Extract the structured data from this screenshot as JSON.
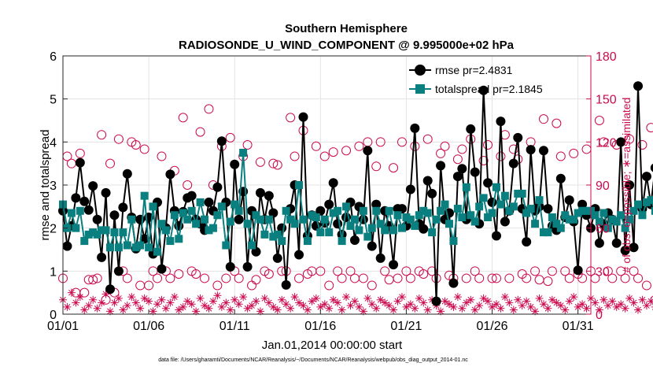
{
  "colors": {
    "rmse": "#000000",
    "spread": "#0a7f7f",
    "obs": "#cc0a4f",
    "axis": "#262626"
  },
  "chart_data": {
    "type": "line",
    "title": "Southern Hemisphere",
    "subtitle": "RADIOSONDE_U_WIND_COMPONENT @ 9.995000e+02 hPa",
    "xlabel": "Jan.01,2014 00:00:00 start",
    "ylabel": "rmse and totalspread",
    "ylabel_right": "# of obs: o=possible; ∗=assimilated",
    "footer": "data file: /Users/gharamti/Documents/NCAR/Reanalysis/~/Documents/NCAR/Reanalysis/webpub/obs_diag_output_2014-01.nc",
    "x_ticks": [
      "01/01",
      "01/06",
      "01/11",
      "01/16",
      "01/21",
      "01/26",
      "01/31"
    ],
    "x_tick_days": [
      1,
      6,
      11,
      16,
      21,
      26,
      31
    ],
    "xlim": [
      1,
      31.75
    ],
    "ylim": [
      0,
      6
    ],
    "y_ticks": [
      "0",
      "1",
      "2",
      "3",
      "4",
      "5",
      "6"
    ],
    "ylim_right": [
      0,
      180
    ],
    "y_ticks_right": [
      "0",
      "30",
      "60",
      "90",
      "120",
      "150",
      "180"
    ],
    "legend": [
      "rmse pr=2.4831",
      "totalspread pr=2.1845"
    ],
    "x_start": 1,
    "x_step": 0.25,
    "series": [
      {
        "name": "rmse",
        "values": [
          2.4,
          1.58,
          2.05,
          2.7,
          3.52,
          2.62,
          2.42,
          2.98,
          2.2,
          1.32,
          2.82,
          0.58,
          2.3,
          1.0,
          2.48,
          3.26,
          2.25,
          1.52,
          2.2,
          1.75,
          2.25,
          1.4,
          2.6,
          1.05,
          2.0,
          3.25,
          2.4,
          2.05,
          2.38,
          2.7,
          2.75,
          2.2,
          2.1,
          1.95,
          2.6,
          2.4,
          2.95,
          4.02,
          2.6,
          1.1,
          3.48,
          2.2,
          2.85,
          1.1,
          2.4,
          1.45,
          2.82,
          2.2,
          2.75,
          2.35,
          1.3,
          2.0,
          0.68,
          2.45,
          3.0,
          1.38,
          4.58,
          1.82,
          2.3,
          2.05,
          2.4,
          2.12,
          2.55,
          3.05,
          2.1,
          1.85,
          2.25,
          2.6,
          1.72,
          2.5,
          2.2,
          3.8,
          1.58,
          2.55,
          1.3,
          2.4,
          2.05,
          1.15,
          2.45,
          2.45,
          2.05,
          2.9,
          4.32,
          2.1,
          1.98,
          3.1,
          2.8,
          0.3,
          3.45,
          2.2,
          2.35,
          0.72,
          3.2,
          3.38,
          2.2,
          4.3,
          3.3,
          2.1,
          5.2,
          3.05,
          2.6,
          1.82,
          4.48,
          2.15,
          2.4,
          3.5,
          4.1,
          2.45,
          1.68,
          3.82,
          2.4,
          2.5,
          3.8,
          2.45,
          2.05,
          1.95,
          3.15,
          2.25,
          2.65,
          2.15,
          1.02,
          2.55,
          2.3,
          2.0,
          2.45,
          1.65,
          2.1,
          2.35,
          2.2,
          1.65,
          4.0,
          1.48,
          3.0,
          1.55,
          5.3,
          2.45,
          3.2,
          2.55,
          3.4,
          3.35
        ]
      },
      {
        "name": "totalspread",
        "values": [
          2.55,
          2.0,
          2.35,
          2.0,
          2.4,
          1.7,
          1.85,
          1.9,
          1.85,
          1.95,
          1.95,
          1.55,
          1.9,
          1.55,
          1.9,
          1.6,
          2.2,
          1.55,
          1.6,
          2.75,
          1.55,
          2.5,
          1.45,
          2.1,
          1.95,
          1.7,
          2.3,
          1.75,
          2.35,
          2.2,
          2.4,
          2.1,
          2.6,
          2.2,
          1.95,
          2.0,
          2.3,
          2.5,
          1.6,
          2.15,
          2.55,
          2.4,
          3.75,
          2.1,
          1.6,
          2.3,
          2.2,
          1.85,
          2.2,
          1.8,
          1.85,
          1.7,
          2.4,
          2.2,
          2.1,
          3.0,
          2.2,
          1.7,
          2.3,
          2.25,
          1.9,
          2.2,
          1.9,
          2.35,
          2.4,
          1.7,
          2.5,
          2.05,
          2.2,
          1.95,
          2.4,
          1.8,
          2.0,
          2.4,
          2.1,
          1.95,
          2.4,
          1.95,
          2.3,
          2.0,
          2.25,
          2.2,
          2.05,
          2.3,
          2.4,
          2.35,
          1.9,
          2.2,
          2.4,
          2.55,
          2.1,
          1.7,
          2.45,
          2.25,
          2.95,
          2.3,
          2.15,
          2.5,
          2.7,
          2.25,
          2.35,
          2.95,
          2.55,
          2.75,
          2.4,
          2.5,
          2.8,
          2.8,
          2.35,
          2.45,
          2.1,
          2.65,
          1.9,
          1.9,
          2.25,
          2.1,
          2.0,
          2.3,
          2.2,
          2.2,
          2.35,
          2.4,
          2.4,
          2.4,
          2.3,
          2.15,
          2.35,
          2.0,
          2.2,
          2.15,
          2.3,
          2.0,
          2.2,
          2.4,
          2.55,
          2.3,
          2.6,
          2.65,
          2.4,
          2.45
        ]
      },
      {
        "name": "possible_obs",
        "axis": "right",
        "values": [
          25,
          110,
          105,
          15,
          112,
          15,
          24,
          24,
          25,
          125,
          10,
          105,
          15,
          122,
          30,
          25,
          120,
          118,
          20,
          115,
          20,
          30,
          25,
          110,
          30,
          25,
          100,
          28,
          137,
          90,
          30,
          28,
          127,
          25,
          143,
          90,
          20,
          117,
          25,
          123,
          30,
          25,
          110,
          118,
          20,
          24,
          106,
          30,
          28,
          105,
          104,
          30,
          30,
          137,
          110,
          25,
          128,
          28,
          30,
          117,
          30,
          110,
          20,
          113,
          30,
          25,
          114,
          30,
          25,
          117,
          25,
          120,
          20,
          103,
          120,
          30,
          24,
          102,
          25,
          120,
          30,
          25,
          117,
          30,
          28,
          122,
          30,
          25,
          112,
          117,
          27,
          25,
          108,
          115,
          25,
          122,
          30,
          25,
          107,
          118,
          25,
          25,
          110,
          125,
          25,
          115,
          108,
          28,
          25,
          120,
          30,
          24,
          136,
          23,
          30,
          133,
          110,
          30,
          25,
          112,
          28,
          25,
          115,
          30,
          25,
          135,
          120,
          30,
          25,
          118,
          30,
          25,
          122,
          30,
          25,
          118,
          20,
          130,
          10,
          5
        ]
      },
      {
        "name": "assimilated_obs",
        "axis": "right",
        "values": [
          10,
          5,
          15,
          8,
          12,
          3,
          6,
          10,
          4,
          8,
          14,
          2,
          8,
          11,
          3,
          6,
          12,
          8,
          4,
          11,
          9,
          2,
          7,
          10,
          4,
          8,
          12,
          3,
          5,
          9,
          7,
          2,
          11,
          6,
          4,
          9,
          13,
          5,
          8,
          3,
          10,
          7,
          12,
          4,
          6,
          9,
          2,
          11,
          8,
          5,
          3,
          10,
          7,
          4,
          12,
          8,
          6,
          3,
          9,
          11,
          5,
          7,
          4,
          10,
          8,
          3,
          12,
          6,
          9,
          5,
          2,
          11,
          7,
          4,
          10,
          8,
          6,
          3,
          9,
          12,
          5,
          7,
          4,
          11,
          8,
          3,
          10,
          6,
          2,
          9,
          7,
          5,
          12,
          4,
          8,
          10,
          3,
          6,
          11,
          9,
          5,
          7,
          4,
          12,
          8,
          3,
          10,
          6,
          9,
          5,
          2,
          11,
          7,
          4,
          10,
          8,
          6,
          3,
          9,
          12,
          5,
          7,
          4,
          11,
          8,
          3,
          10,
          6,
          9,
          5,
          7,
          4,
          11,
          8,
          3,
          10,
          6,
          9,
          5,
          7
        ]
      }
    ]
  }
}
